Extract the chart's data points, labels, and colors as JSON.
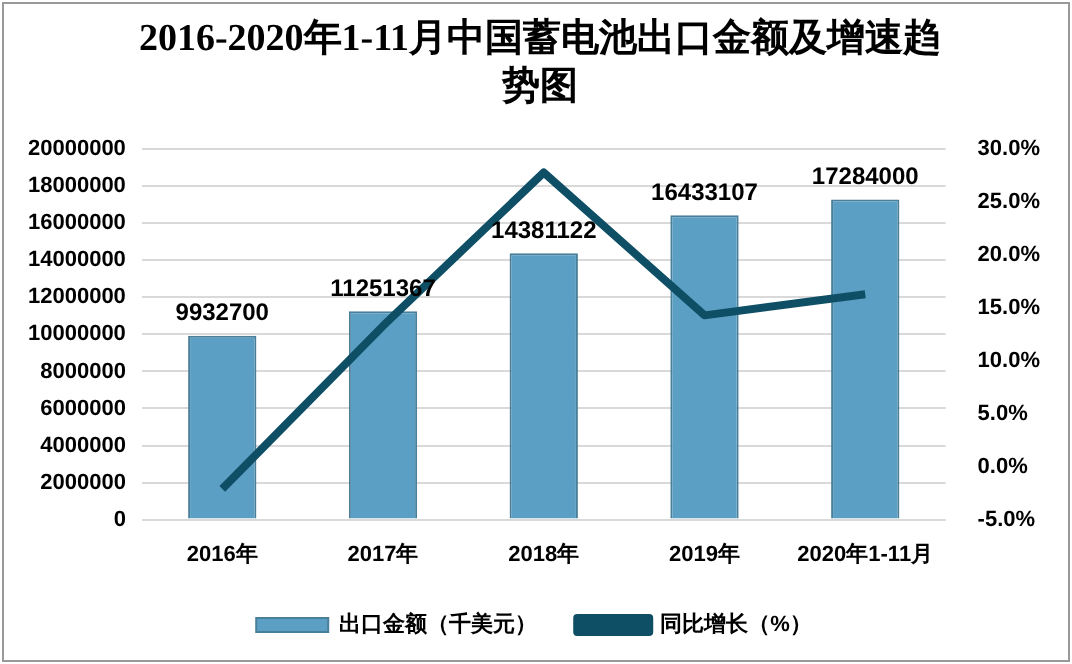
{
  "chart_data": {
    "type": "bar",
    "title": "2016-2020年1-11月中国蓄电池出口金额及增速趋势图",
    "categories": [
      "2016年",
      "2017年",
      "2018年",
      "2019年",
      "2020年1-11月"
    ],
    "series": [
      {
        "name": "出口金额（千美元）",
        "color": "#5b9fc4",
        "values": [
          9932700,
          11251367,
          14381122,
          16433107,
          17284000
        ],
        "value_labels": [
          "9932700",
          "11251367",
          "14381122",
          "16433107",
          "17284000"
        ]
      },
      {
        "name": "同比增长（%）",
        "type": "line",
        "axis": "y2",
        "color": "#0e4f66",
        "values": [
          -2.1,
          13.3,
          27.8,
          14.3,
          16.3
        ]
      }
    ],
    "ylim": [
      0,
      20000000
    ],
    "yticks": [
      0,
      2000000,
      4000000,
      6000000,
      8000000,
      10000000,
      12000000,
      14000000,
      16000000,
      18000000,
      20000000
    ],
    "y2lim": [
      -5,
      30
    ],
    "y2ticks": [
      {
        "value": -5,
        "label": "-5.0%"
      },
      {
        "value": 0,
        "label": "0.0%"
      },
      {
        "value": 5,
        "label": "5.0%"
      },
      {
        "value": 10,
        "label": "10.0%"
      },
      {
        "value": 15,
        "label": "15.0%"
      },
      {
        "value": 20,
        "label": "20.0%"
      },
      {
        "value": 25,
        "label": "25.0%"
      },
      {
        "value": 30,
        "label": "30.0%"
      }
    ],
    "grid": "y",
    "legend": "bottom",
    "marker": "none",
    "line_style": "solid"
  }
}
